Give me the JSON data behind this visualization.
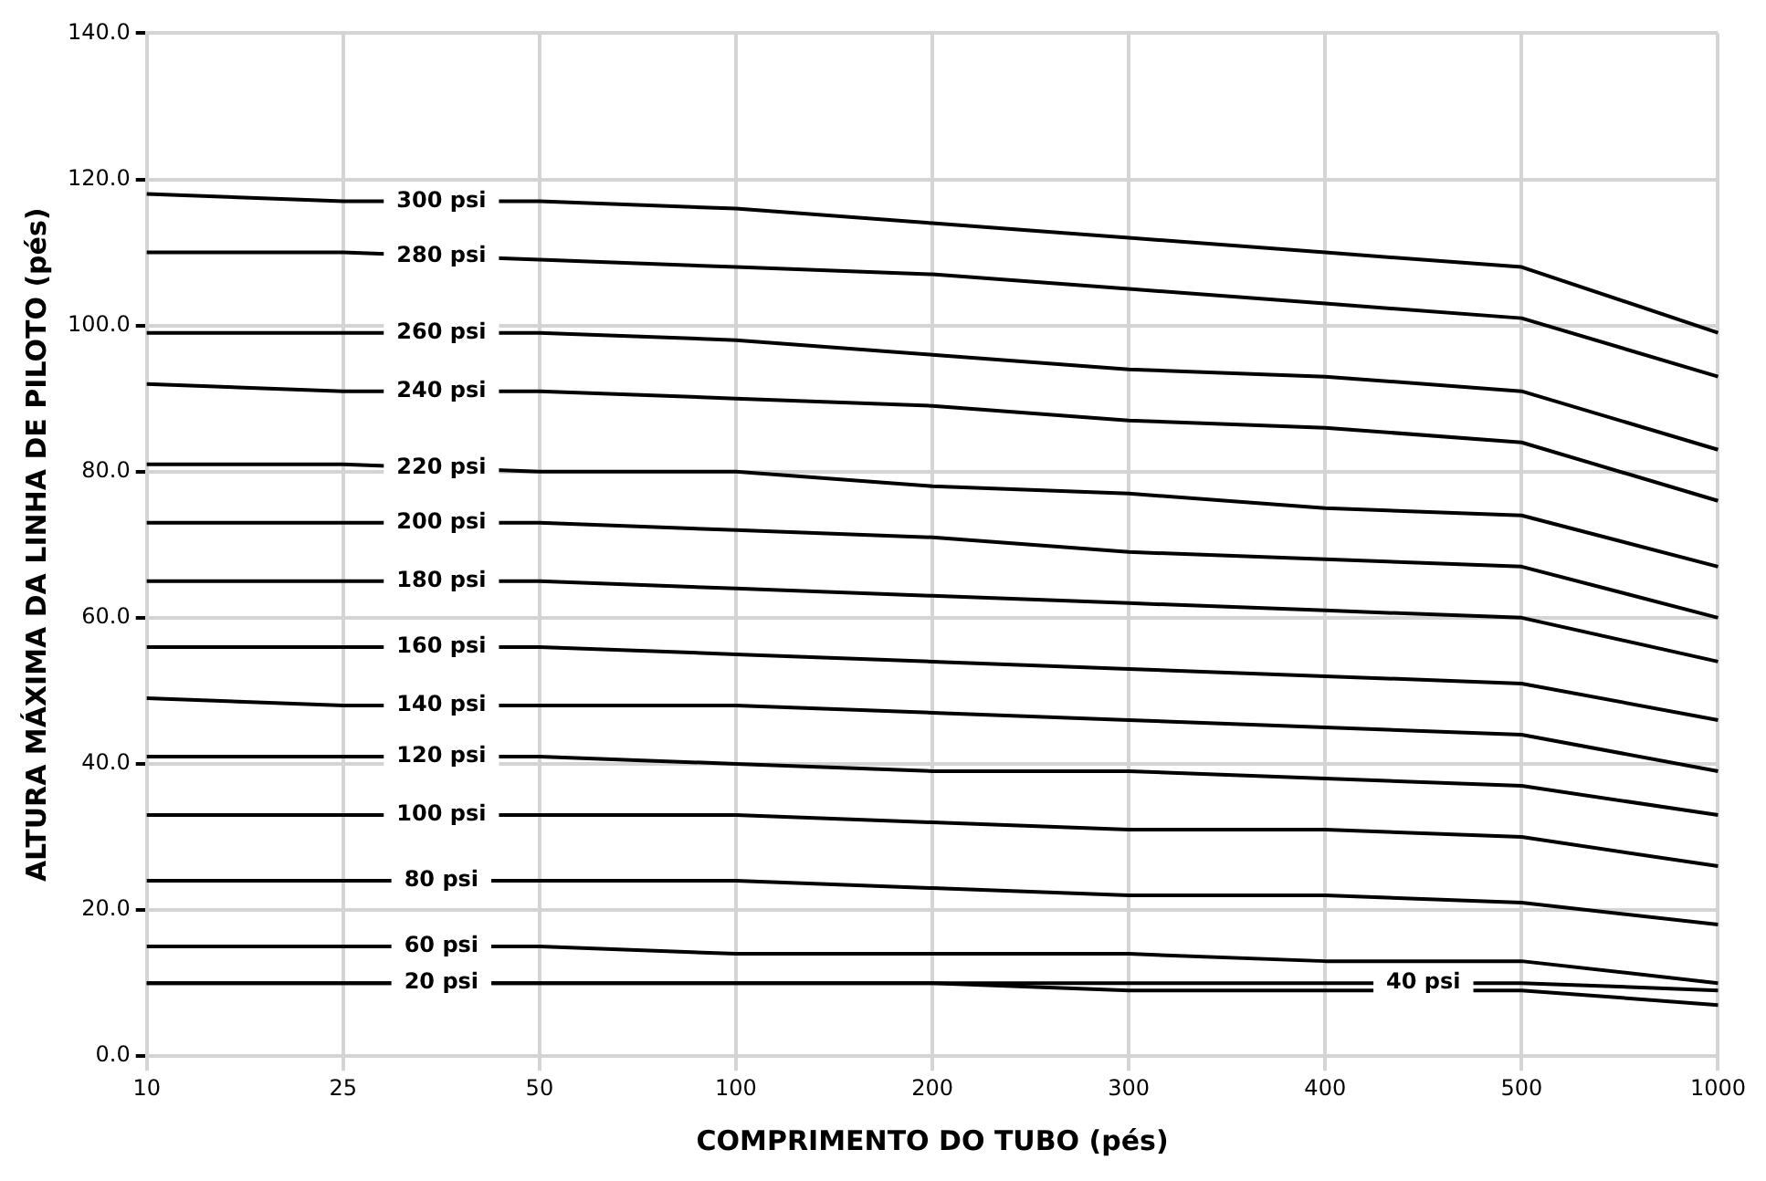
{
  "chart_data": {
    "type": "line",
    "xlabel": "COMPRIMENTO DO TUBO (pés)",
    "ylabel": "ALTURA MÁXIMA DA LINHA DE PILOTO (pés)",
    "categories": [
      "10",
      "25",
      "50",
      "100",
      "200",
      "300",
      "400",
      "500",
      "1000"
    ],
    "ylim": [
      0,
      140
    ],
    "yticks": [
      {
        "value": 0,
        "label": "0.0"
      },
      {
        "value": 20,
        "label": "20.0"
      },
      {
        "value": 40,
        "label": "40.0"
      },
      {
        "value": 60,
        "label": "60.0"
      },
      {
        "value": 80,
        "label": "80.0"
      },
      {
        "value": 100,
        "label": "100.0"
      },
      {
        "value": 120,
        "label": "120.0"
      },
      {
        "value": 140,
        "label": "140.0"
      }
    ],
    "grid": true,
    "legend": false,
    "marker": "none",
    "line_style": "solid",
    "series": [
      {
        "name": "300 psi",
        "color": "#000000",
        "values": [
          118,
          117,
          117,
          116,
          114,
          112,
          110,
          108,
          99
        ]
      },
      {
        "name": "280 psi",
        "color": "#000000",
        "values": [
          110,
          110,
          109,
          108,
          107,
          105,
          103,
          101,
          93
        ]
      },
      {
        "name": "260 psi",
        "color": "#000000",
        "values": [
          99,
          99,
          99,
          98,
          96,
          94,
          93,
          91,
          83
        ]
      },
      {
        "name": "240 psi",
        "color": "#000000",
        "values": [
          92,
          91,
          91,
          90,
          89,
          87,
          86,
          84,
          76
        ]
      },
      {
        "name": "220 psi",
        "color": "#000000",
        "values": [
          81,
          81,
          80,
          80,
          78,
          77,
          75,
          74,
          67
        ]
      },
      {
        "name": "200 psi",
        "color": "#000000",
        "values": [
          73,
          73,
          73,
          72,
          71,
          69,
          68,
          67,
          60
        ]
      },
      {
        "name": "180 psi",
        "color": "#000000",
        "values": [
          65,
          65,
          65,
          64,
          63,
          62,
          61,
          60,
          54
        ]
      },
      {
        "name": "160 psi",
        "color": "#000000",
        "values": [
          56,
          56,
          56,
          55,
          54,
          53,
          52,
          51,
          46
        ]
      },
      {
        "name": "140 psi",
        "color": "#000000",
        "values": [
          49,
          48,
          48,
          48,
          47,
          46,
          45,
          44,
          39
        ]
      },
      {
        "name": "120 psi",
        "color": "#000000",
        "values": [
          41,
          41,
          41,
          40,
          39,
          39,
          38,
          37,
          33
        ]
      },
      {
        "name": "100 psi",
        "color": "#000000",
        "values": [
          33,
          33,
          33,
          33,
          32,
          31,
          31,
          30,
          26
        ]
      },
      {
        "name": "80 psi",
        "color": "#000000",
        "values": [
          24,
          24,
          24,
          24,
          23,
          22,
          22,
          21,
          18
        ]
      },
      {
        "name": "60 psi",
        "color": "#000000",
        "values": [
          15,
          15,
          15,
          14,
          14,
          14,
          13,
          13,
          10
        ]
      },
      {
        "name": "20 psi",
        "color": "#000000",
        "values": [
          10,
          10,
          10,
          10,
          10,
          9,
          9,
          9,
          7
        ]
      },
      {
        "name": "40 psi",
        "color": "#000000",
        "values": [
          10,
          10,
          10,
          10,
          10,
          10,
          10,
          10,
          9
        ]
      }
    ]
  }
}
